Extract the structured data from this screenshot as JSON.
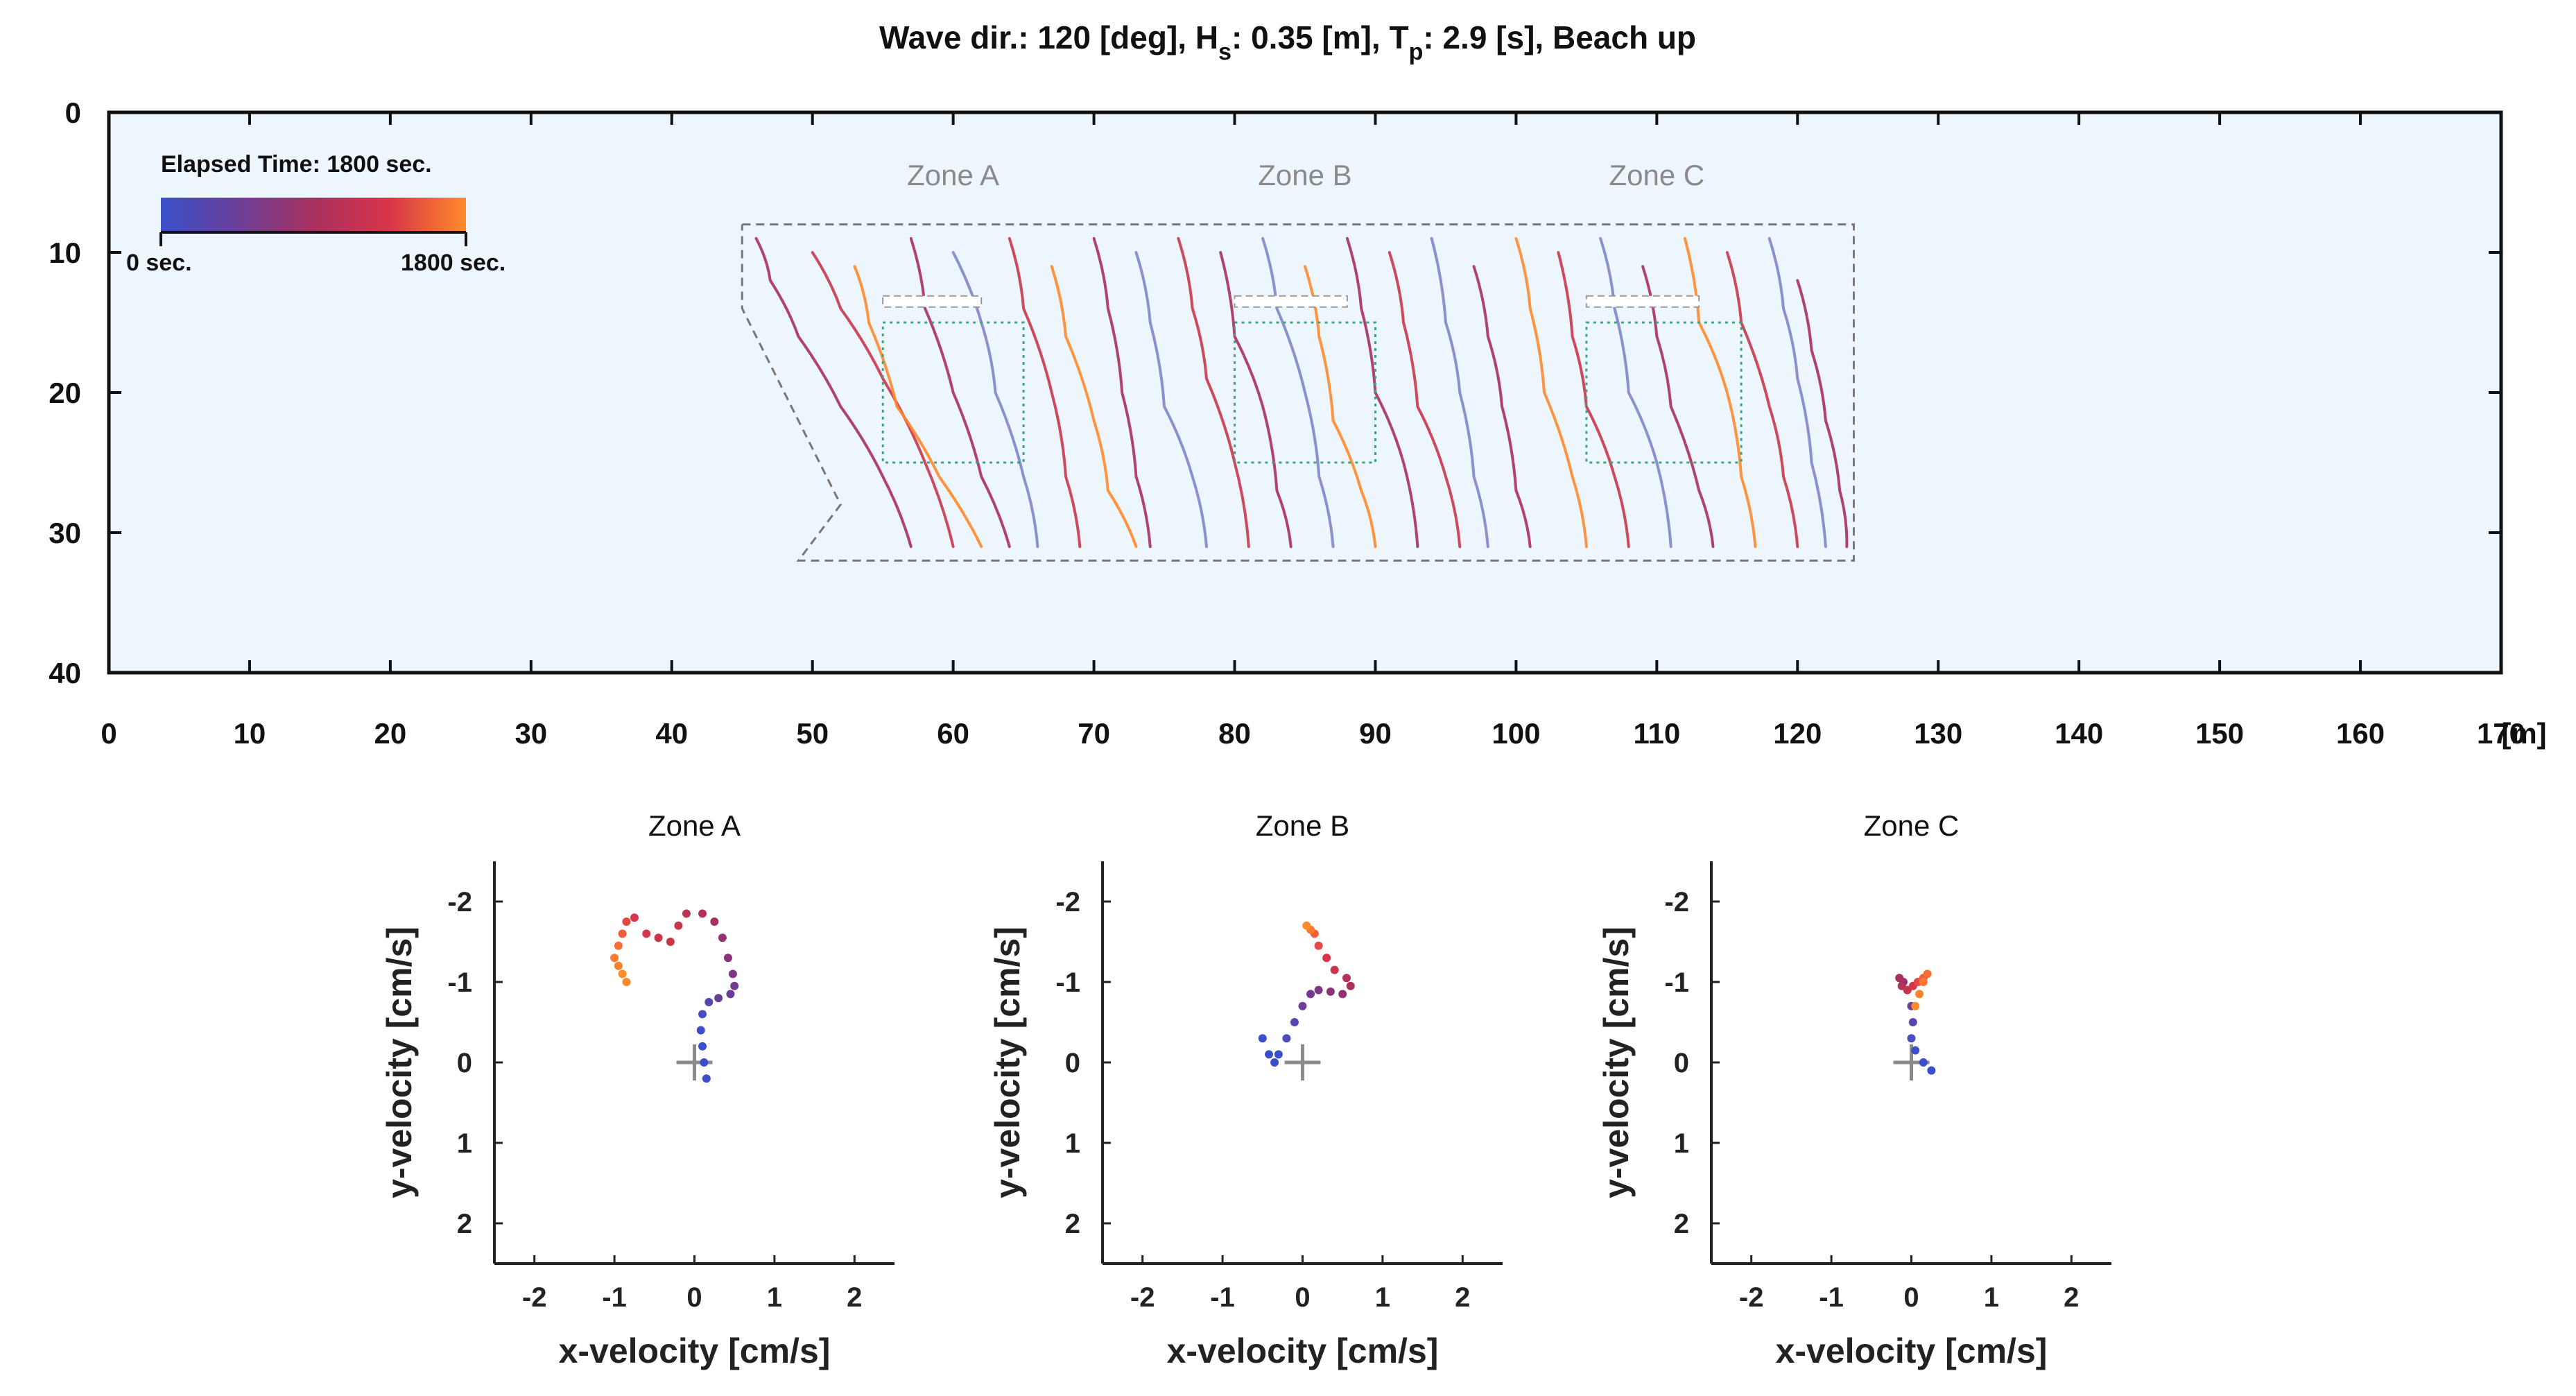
{
  "chart_data": [
    {
      "type": "line",
      "title_parts": {
        "a": "Wave dir.: 120 [deg], H",
        "sub1": "s",
        "b": ": 0.35 [m], T",
        "sub2": "p",
        "c": ": 2.9 [s], Beach up"
      },
      "xlim": [
        0,
        170
      ],
      "ylim": [
        0,
        40
      ],
      "y_reversed": true,
      "x_ticks": [
        0,
        10,
        20,
        30,
        40,
        50,
        60,
        70,
        80,
        90,
        100,
        110,
        120,
        130,
        140,
        150,
        160,
        170
      ],
      "y_ticks": [
        0,
        10,
        20,
        30,
        40
      ],
      "x_unit": "[m]",
      "colorbar": {
        "label": "Elapsed Time: 1800 sec.",
        "min_label": "0 sec.",
        "max_label": "1800 sec.",
        "colors": [
          "#3a4fc9",
          "#6a3f9a",
          "#a8305e",
          "#d8354a",
          "#ff8a2a"
        ]
      },
      "zone_labels": [
        {
          "name": "Zone A",
          "x": 60,
          "y": 4.5
        },
        {
          "name": "Zone B",
          "x": 85,
          "y": 4.5
        },
        {
          "name": "Zone C",
          "x": 110,
          "y": 4.5
        }
      ],
      "domain_outline": [
        [
          45,
          8
        ],
        [
          124,
          8
        ],
        [
          124,
          32
        ],
        [
          49,
          32
        ],
        [
          52,
          28
        ],
        [
          45,
          14
        ],
        [
          45,
          8
        ]
      ],
      "zone_boxes": [
        {
          "x0": 55,
          "x1": 65,
          "y0": 15,
          "y1": 25
        },
        {
          "x0": 80,
          "x1": 90,
          "y0": 15,
          "y1": 25
        },
        {
          "x0": 105,
          "x1": 116,
          "y0": 15,
          "y1": 25
        }
      ],
      "breakwaters": [
        {
          "x0": 55,
          "x1": 62,
          "y": 13.5
        },
        {
          "x0": 80,
          "x1": 88,
          "y": 13.5
        },
        {
          "x0": 105,
          "x1": 113,
          "y": 13.5
        }
      ],
      "tracks": [
        {
          "x": [
            46,
            47,
            49,
            52,
            55,
            57
          ],
          "y": [
            9,
            12,
            16,
            21,
            26,
            31
          ],
          "color": "#a8305e"
        },
        {
          "x": [
            50,
            52,
            55,
            58,
            60
          ],
          "y": [
            10,
            14,
            19,
            25,
            31
          ],
          "color": "#c9364c"
        },
        {
          "x": [
            53,
            54,
            56,
            59,
            62
          ],
          "y": [
            11,
            15,
            21,
            26,
            31
          ],
          "color": "#ff8a2a"
        },
        {
          "x": [
            57,
            58,
            60,
            62,
            64
          ],
          "y": [
            9,
            14,
            20,
            26,
            31
          ],
          "color": "#a8305e"
        },
        {
          "x": [
            60,
            62,
            63,
            65,
            66
          ],
          "y": [
            10,
            15,
            20,
            26,
            31
          ],
          "color": "#7f86c8"
        },
        {
          "x": [
            64,
            65,
            67,
            68,
            69
          ],
          "y": [
            9,
            14,
            20,
            26,
            31
          ],
          "color": "#c9364c"
        },
        {
          "x": [
            67,
            68,
            70,
            71,
            73
          ],
          "y": [
            11,
            16,
            22,
            27,
            31
          ],
          "color": "#ff8a2a"
        },
        {
          "x": [
            70,
            71,
            72,
            73,
            74
          ],
          "y": [
            9,
            14,
            20,
            26,
            31
          ],
          "color": "#a8305e"
        },
        {
          "x": [
            73,
            74,
            75,
            77,
            78
          ],
          "y": [
            10,
            15,
            21,
            26,
            31
          ],
          "color": "#7f86c8"
        },
        {
          "x": [
            76,
            77,
            78,
            80,
            81
          ],
          "y": [
            9,
            14,
            19,
            25,
            31
          ],
          "color": "#c9364c"
        },
        {
          "x": [
            79,
            80,
            82,
            83,
            84
          ],
          "y": [
            10,
            16,
            21,
            27,
            31
          ],
          "color": "#a8305e"
        },
        {
          "x": [
            82,
            83,
            85,
            86,
            87
          ],
          "y": [
            9,
            14,
            20,
            26,
            31
          ],
          "color": "#7f86c8"
        },
        {
          "x": [
            85,
            86,
            87,
            89,
            90
          ],
          "y": [
            11,
            16,
            22,
            27,
            31
          ],
          "color": "#ff8a2a"
        },
        {
          "x": [
            88,
            89,
            90,
            92,
            93
          ],
          "y": [
            9,
            14,
            20,
            25,
            31
          ],
          "color": "#a8305e"
        },
        {
          "x": [
            91,
            92,
            93,
            95,
            96
          ],
          "y": [
            10,
            15,
            21,
            26,
            31
          ],
          "color": "#c9364c"
        },
        {
          "x": [
            94,
            95,
            96,
            97,
            98
          ],
          "y": [
            9,
            15,
            20,
            26,
            31
          ],
          "color": "#7f86c8"
        },
        {
          "x": [
            97,
            98,
            99,
            100,
            101
          ],
          "y": [
            11,
            16,
            21,
            27,
            31
          ],
          "color": "#a8305e"
        },
        {
          "x": [
            100,
            101,
            102,
            104,
            105
          ],
          "y": [
            9,
            14,
            20,
            26,
            31
          ],
          "color": "#ff8a2a"
        },
        {
          "x": [
            103,
            104,
            105,
            107,
            108
          ],
          "y": [
            10,
            16,
            21,
            26,
            31
          ],
          "color": "#c9364c"
        },
        {
          "x": [
            106,
            107,
            108,
            110,
            111
          ],
          "y": [
            9,
            14,
            20,
            25,
            31
          ],
          "color": "#7f86c8"
        },
        {
          "x": [
            109,
            110,
            111,
            113,
            114
          ],
          "y": [
            11,
            16,
            21,
            27,
            31
          ],
          "color": "#a8305e"
        },
        {
          "x": [
            112,
            113,
            115,
            116,
            117
          ],
          "y": [
            9,
            15,
            20,
            26,
            31
          ],
          "color": "#ff8a2a"
        },
        {
          "x": [
            115,
            116,
            118,
            119,
            120
          ],
          "y": [
            10,
            15,
            21,
            26,
            31
          ],
          "color": "#c9364c"
        },
        {
          "x": [
            118,
            119,
            120,
            121,
            122
          ],
          "y": [
            9,
            14,
            19,
            25,
            31
          ],
          "color": "#7f86c8"
        },
        {
          "x": [
            120,
            121,
            122,
            123,
            123.5
          ],
          "y": [
            12,
            17,
            22,
            27,
            31
          ],
          "color": "#a8305e"
        }
      ]
    },
    {
      "type": "scatter",
      "title": "Zone A",
      "xlabel": "x-velocity [cm/s]",
      "ylabel": "y-velocity [cm/s]",
      "xlim": [
        -2.5,
        2.5
      ],
      "ylim": [
        -2.5,
        2.5
      ],
      "y_reversed": true,
      "x_ticks": [
        -2,
        -1,
        0,
        1,
        2
      ],
      "y_ticks": [
        -2,
        -1,
        0,
        1,
        2
      ],
      "x": [
        0.15,
        0.12,
        0.1,
        0.08,
        0.1,
        0.18,
        0.3,
        0.45,
        0.5,
        0.48,
        0.42,
        0.35,
        0.25,
        0.1,
        -0.1,
        -0.2,
        -0.3,
        -0.45,
        -0.6,
        -0.75,
        -0.85,
        -0.9,
        -0.95,
        -1.0,
        -0.95,
        -0.9,
        -0.85
      ],
      "y": [
        0.2,
        0.0,
        -0.2,
        -0.4,
        -0.6,
        -0.75,
        -0.8,
        -0.85,
        -0.95,
        -1.1,
        -1.3,
        -1.55,
        -1.75,
        -1.85,
        -1.85,
        -1.7,
        -1.5,
        -1.55,
        -1.6,
        -1.8,
        -1.75,
        -1.6,
        -1.45,
        -1.3,
        -1.2,
        -1.1,
        -1.0
      ],
      "colors": [
        "#3a4fc9",
        "#3a4fc9",
        "#3a4fc9",
        "#3a4fc9",
        "#4a4cc0",
        "#5a45b0",
        "#6a3f9a",
        "#6a3f9a",
        "#73398f",
        "#7d3584",
        "#88337a",
        "#933270",
        "#a8305e",
        "#b3325a",
        "#bd3454",
        "#c9364c",
        "#c9364c",
        "#c9364c",
        "#d8354a",
        "#d8354a",
        "#e44a42",
        "#ee5f3a",
        "#f57035",
        "#f97a30",
        "#fc822d",
        "#ff8a2a",
        "#ff8a2a"
      ]
    },
    {
      "type": "scatter",
      "title": "Zone B",
      "xlabel": "x-velocity [cm/s]",
      "ylabel": "y-velocity [cm/s]",
      "xlim": [
        -2.5,
        2.5
      ],
      "ylim": [
        -2.5,
        2.5
      ],
      "y_reversed": true,
      "x_ticks": [
        -2,
        -1,
        0,
        1,
        2
      ],
      "y_ticks": [
        -2,
        -1,
        0,
        1,
        2
      ],
      "x": [
        -0.5,
        -0.42,
        -0.35,
        -0.3,
        -0.2,
        -0.1,
        0.0,
        0.1,
        0.2,
        0.35,
        0.5,
        0.6,
        0.55,
        0.4,
        0.3,
        0.2,
        0.15,
        0.1,
        0.05
      ],
      "y": [
        -0.3,
        -0.1,
        0.0,
        -0.1,
        -0.3,
        -0.5,
        -0.7,
        -0.85,
        -0.9,
        -0.88,
        -0.85,
        -0.95,
        -1.05,
        -1.15,
        -1.3,
        -1.45,
        -1.6,
        -1.65,
        -1.7
      ],
      "colors": [
        "#3a4fc9",
        "#3a4fc9",
        "#3a4fc9",
        "#3a4fc9",
        "#4a4cc0",
        "#5a45b0",
        "#6a3f9a",
        "#73398f",
        "#7d3584",
        "#88337a",
        "#933270",
        "#a8305e",
        "#b3325a",
        "#c9364c",
        "#d8354a",
        "#e44a42",
        "#ee5f3a",
        "#f97a30",
        "#ff8a2a"
      ]
    },
    {
      "type": "scatter",
      "title": "Zone C",
      "xlabel": "x-velocity [cm/s]",
      "ylabel": "y-velocity [cm/s]",
      "xlim": [
        -2.5,
        2.5
      ],
      "ylim": [
        -2.5,
        2.5
      ],
      "y_reversed": true,
      "x_ticks": [
        -2,
        -1,
        0,
        1,
        2
      ],
      "y_ticks": [
        -2,
        -1,
        0,
        1,
        2
      ],
      "x": [
        0.25,
        0.15,
        0.05,
        0.0,
        0.02,
        0.0,
        -0.05,
        -0.1,
        -0.15,
        -0.12,
        -0.05,
        0.02,
        0.08,
        0.15,
        0.2,
        0.15,
        0.1,
        0.05
      ],
      "y": [
        0.1,
        0.0,
        -0.15,
        -0.3,
        -0.5,
        -0.7,
        -0.9,
        -1.0,
        -1.05,
        -0.95,
        -0.9,
        -0.95,
        -1.0,
        -1.05,
        -1.1,
        -1.0,
        -0.85,
        -0.7
      ],
      "colors": [
        "#3a4fc9",
        "#3a4fc9",
        "#3a4fc9",
        "#4a4cc0",
        "#5a45b0",
        "#6a3f9a",
        "#7d3584",
        "#933270",
        "#a8305e",
        "#b3325a",
        "#c9364c",
        "#d8354a",
        "#e44a42",
        "#ee5f3a",
        "#f57035",
        "#f97a30",
        "#fc822d",
        "#ff8a2a"
      ]
    }
  ]
}
